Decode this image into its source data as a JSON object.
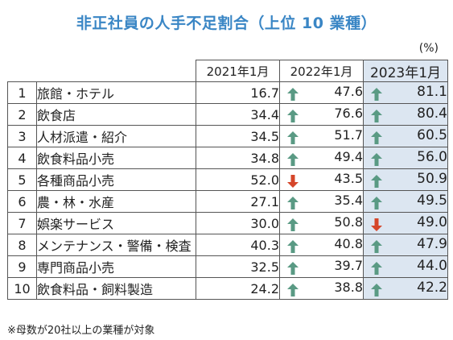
{
  "title": "非正社員の人手不足割合（上位 10 業種）",
  "unit": "(%)",
  "note": "※母数が20社以上の業種が対象",
  "colors": {
    "up": "#5a9a84",
    "down": "#d5462a",
    "highlight": "#dce6f1",
    "title": "#3a86c5"
  },
  "chart_data": {
    "type": "table",
    "title": "非正社員の人手不足割合（上位 10 業種）",
    "columns": [
      "2021年1月",
      "2022年1月",
      "2023年1月"
    ],
    "highlight_column": "2023年1月",
    "rows": [
      {
        "rank": "1",
        "name": "旅館・ホテル",
        "values": [
          "16.7",
          "47.6",
          "81.1"
        ],
        "trend": [
          "",
          "up",
          "up"
        ]
      },
      {
        "rank": "2",
        "name": "飲食店",
        "values": [
          "34.4",
          "76.6",
          "80.4"
        ],
        "trend": [
          "",
          "up",
          "up"
        ]
      },
      {
        "rank": "3",
        "name": "人材派遣・紹介",
        "values": [
          "34.5",
          "51.7",
          "60.5"
        ],
        "trend": [
          "",
          "up",
          "up"
        ]
      },
      {
        "rank": "4",
        "name": "飲食料品小売",
        "values": [
          "34.8",
          "49.4",
          "56.0"
        ],
        "trend": [
          "",
          "up",
          "up"
        ]
      },
      {
        "rank": "5",
        "name": "各種商品小売",
        "values": [
          "52.0",
          "43.5",
          "50.9"
        ],
        "trend": [
          "",
          "down",
          "up"
        ]
      },
      {
        "rank": "6",
        "name": "農・林・水産",
        "values": [
          "27.1",
          "35.4",
          "49.5"
        ],
        "trend": [
          "",
          "up",
          "up"
        ]
      },
      {
        "rank": "7",
        "name": "娯楽サービス",
        "values": [
          "30.0",
          "50.8",
          "49.0"
        ],
        "trend": [
          "",
          "up",
          "down"
        ]
      },
      {
        "rank": "8",
        "name": "メンテナンス・警備・検査",
        "values": [
          "40.3",
          "40.8",
          "47.9"
        ],
        "trend": [
          "",
          "up",
          "up"
        ]
      },
      {
        "rank": "9",
        "name": "専門商品小売",
        "values": [
          "32.5",
          "39.7",
          "44.0"
        ],
        "trend": [
          "",
          "up",
          "up"
        ]
      },
      {
        "rank": "10",
        "name": "飲食料品・飼料製造",
        "values": [
          "24.2",
          "38.8",
          "42.2"
        ],
        "trend": [
          "",
          "up",
          "up"
        ]
      }
    ]
  }
}
